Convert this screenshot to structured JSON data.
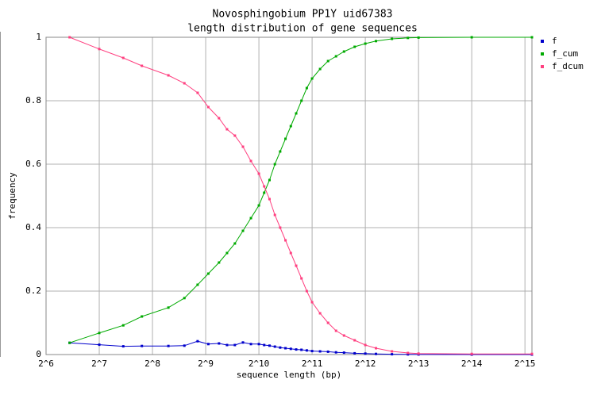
{
  "chart_data": {
    "type": "line",
    "title": "Novosphingobium PP1Y uid67383",
    "subtitle": "length distribution of gene sequences",
    "x_label": "sequence length (bp)",
    "y_label": "frequency",
    "x_log_base": 2,
    "grid": true,
    "legend": "right",
    "x": [
      87,
      128,
      175,
      223,
      315,
      388,
      461,
      530,
      609,
      676,
      749,
      832,
      923,
      1024,
      1097,
      1176,
      1261,
      1351,
      1448,
      1552,
      1664,
      1783,
      1911,
      2048,
      2272,
      2521,
      2797,
      3104,
      3566,
      4096,
      4705,
      5793,
      7132,
      8192,
      16384,
      35900
    ],
    "series": [
      {
        "name": "f",
        "color": "#0000cc",
        "values": [
          0.037,
          0.031,
          0.026,
          0.027,
          0.027,
          0.028,
          0.042,
          0.033,
          0.035,
          0.03,
          0.03,
          0.038,
          0.033,
          0.033,
          0.03,
          0.028,
          0.025,
          0.022,
          0.02,
          0.018,
          0.016,
          0.015,
          0.013,
          0.011,
          0.01,
          0.009,
          0.007,
          0.006,
          0.004,
          0.003,
          0.002,
          0.001,
          0.0005,
          0.0003,
          0,
          0
        ]
      },
      {
        "name": "f_cum",
        "color": "#00aa00",
        "values": [
          0.037,
          0.068,
          0.092,
          0.12,
          0.148,
          0.178,
          0.22,
          0.255,
          0.29,
          0.32,
          0.35,
          0.39,
          0.43,
          0.47,
          0.51,
          0.55,
          0.6,
          0.64,
          0.68,
          0.72,
          0.76,
          0.8,
          0.84,
          0.87,
          0.9,
          0.925,
          0.94,
          0.955,
          0.97,
          0.98,
          0.988,
          0.995,
          0.998,
          0.999,
          1,
          1
        ]
      },
      {
        "name": "f_dcum",
        "color": "#ff4080",
        "values": [
          1,
          0.963,
          0.935,
          0.91,
          0.88,
          0.855,
          0.825,
          0.78,
          0.745,
          0.71,
          0.69,
          0.655,
          0.61,
          0.57,
          0.53,
          0.49,
          0.44,
          0.4,
          0.36,
          0.32,
          0.28,
          0.24,
          0.2,
          0.165,
          0.13,
          0.1,
          0.075,
          0.06,
          0.045,
          0.03,
          0.02,
          0.01,
          0.005,
          0.003,
          0.002,
          0.002
        ]
      }
    ],
    "xlim": [
      64,
      35900
    ],
    "xticks": [
      {
        "value": 64,
        "label": "2^6"
      },
      {
        "value": 128,
        "label": "2^7"
      },
      {
        "value": 256,
        "label": "2^8"
      },
      {
        "value": 512,
        "label": "2^9"
      },
      {
        "value": 1024,
        "label": "2^10"
      },
      {
        "value": 2048,
        "label": "2^11"
      },
      {
        "value": 4096,
        "label": "2^12"
      },
      {
        "value": 8192,
        "label": "2^13"
      },
      {
        "value": 16384,
        "label": "2^14"
      },
      {
        "value": 32768,
        "label": "2^15"
      }
    ],
    "ylim": [
      0,
      1
    ],
    "yticks": [
      0,
      0.2,
      0.4,
      0.6,
      0.8,
      1
    ]
  }
}
